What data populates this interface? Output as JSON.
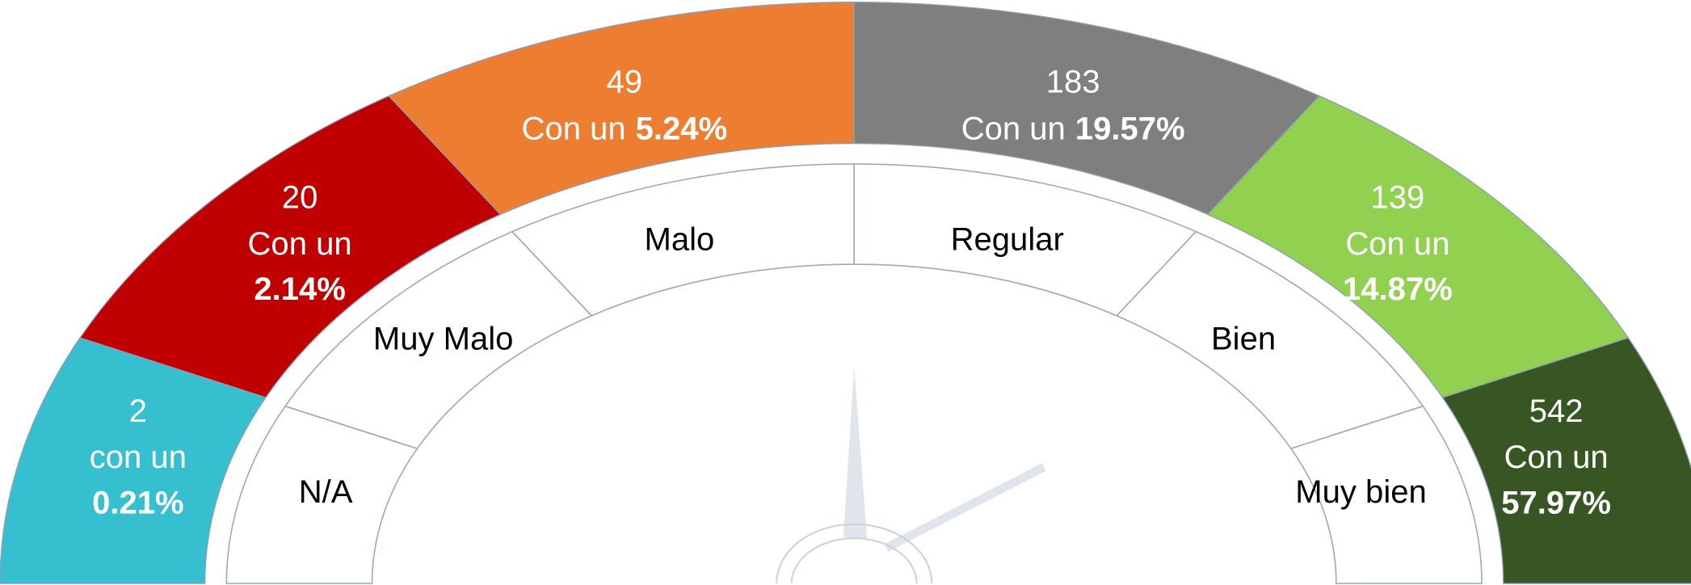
{
  "segments": [
    {
      "count": 2,
      "prefix": "con un",
      "percent": "0.21%",
      "label": "N/A",
      "color": "#36BFCF"
    },
    {
      "count": 20,
      "prefix": "Con un",
      "percent": "2.14%",
      "label": "Muy Malo",
      "color": "#C00000"
    },
    {
      "count": 49,
      "prefix": "Con un",
      "percent": "5.24%",
      "label": "Malo",
      "color": "#ED7D31"
    },
    {
      "count": 183,
      "prefix": "Con un",
      "percent": "19.57%",
      "label": "Regular",
      "color": "#7F7F7F"
    },
    {
      "count": 139,
      "prefix": "Con un",
      "percent": "14.87%",
      "label": "Bien",
      "color": "#92D050"
    },
    {
      "count": 542,
      "prefix": "Con un",
      "percent": "57.97%",
      "label": "Muy bien",
      "color": "#375623"
    }
  ]
}
